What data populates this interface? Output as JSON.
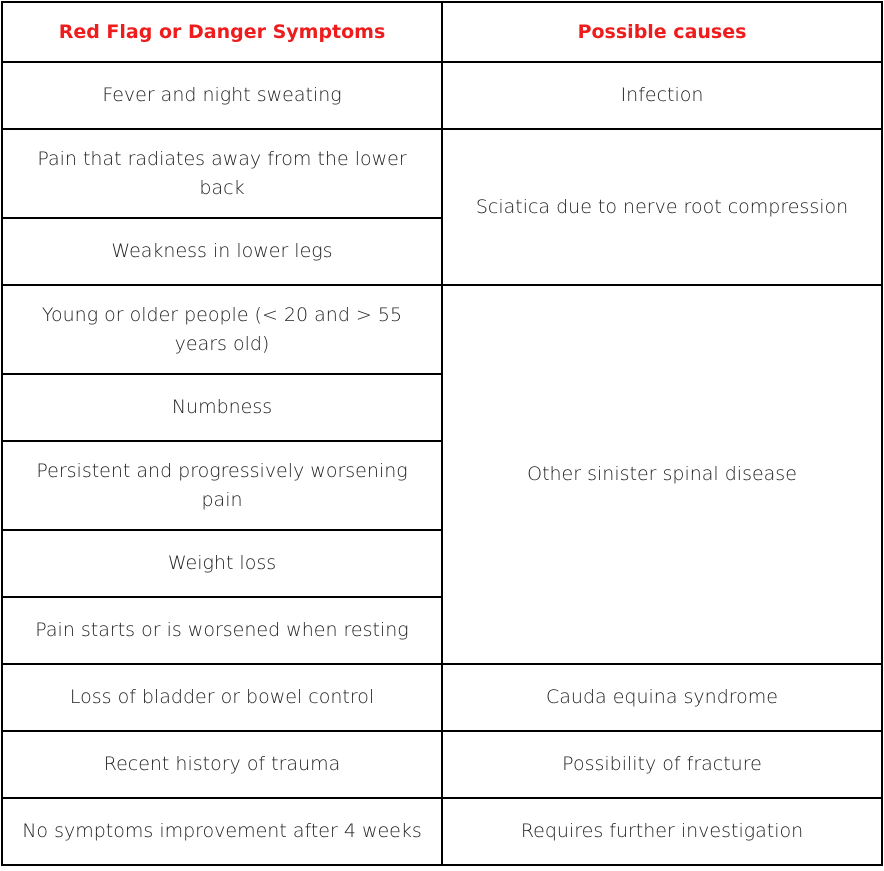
{
  "table": {
    "headers": {
      "symptoms": "Red Flag or Danger Symptoms",
      "causes": "Possible causes"
    },
    "rows": [
      {
        "symptom": "Fever and night sweating",
        "cause": "Infection"
      },
      {
        "symptom": "Pain that radiates away from the lower back",
        "cause": "Sciatica due to nerve root compression"
      },
      {
        "symptom": "Weakness in lower legs"
      },
      {
        "symptom": "Young or older people (< 20 and > 55 years old)",
        "cause": "Other sinister spinal disease"
      },
      {
        "symptom": "Numbness"
      },
      {
        "symptom": "Persistent and progressively worsening pain"
      },
      {
        "symptom": "Weight loss"
      },
      {
        "symptom": "Pain starts or is  worsened when resting"
      },
      {
        "symptom": "Loss of bladder or bowel control",
        "cause": "Cauda equina syndrome"
      },
      {
        "symptom": "Recent history of trauma",
        "cause": "Possibility of fracture"
      },
      {
        "symptom": "No symptoms improvement after 4 weeks",
        "cause": "Requires further investigation"
      }
    ]
  },
  "colors": {
    "header_text": "#ee1c1c",
    "body_text": "#222222",
    "border": "#000000"
  }
}
